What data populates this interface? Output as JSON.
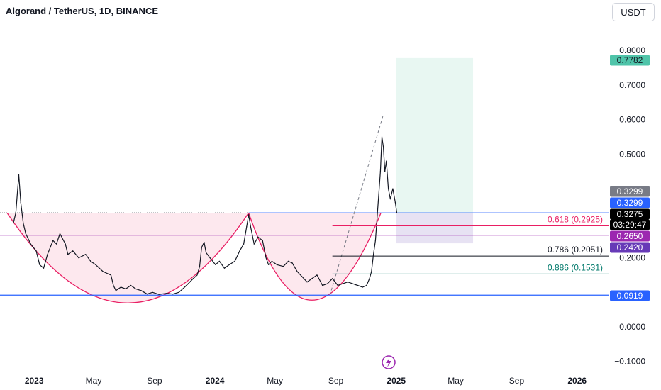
{
  "header": {
    "title": "Algorand / TetherUS, 1D, BINANCE",
    "currency_button": "USDT"
  },
  "colors": {
    "price_line": "#131722",
    "cup_fill": "#fde8ee",
    "cup_curve": "#e91e63",
    "support_line": "#2962ff",
    "resistance_line": "#2962ff",
    "dotted_line": "#131722",
    "fib_0618": "#e91e63",
    "fib_0786": "#131722",
    "fib_0886": "#00796b",
    "target_zone": "#e8f7f2",
    "stop_zone": "#e7e2f3",
    "projection_line": "#787b86",
    "purple_line": "#9c27b0",
    "badge_target": "#4fc4a9",
    "badge_gray": "#787b86",
    "badge_blue": "#2962ff",
    "badge_black": "#000000",
    "badge_pink": "#9c27b0",
    "badge_purple": "#673ab7",
    "axis_text": "#131722",
    "lightning": "#9c27b0"
  },
  "icons": {
    "events": "lightning-icon"
  },
  "chart_data": {
    "type": "line",
    "title": "Algorand / TetherUS, 1D, BINANCE",
    "xlabel": "",
    "ylabel": "",
    "ylim": [
      -0.1,
      0.8
    ],
    "y_ticks": [
      "0.8000",
      "0.7000",
      "0.6000",
      "0.5000",
      "0.2000",
      "0.0000",
      "−0.1000"
    ],
    "y_tick_values": [
      0.8,
      0.7,
      0.6,
      0.5,
      0.2,
      0.0,
      -0.1
    ],
    "x_ticks": [
      "2023",
      "May",
      "Sep",
      "2024",
      "May",
      "Sep",
      "2025",
      "May",
      "Sep",
      "2026"
    ],
    "x_tick_dates": [
      "2023-01-01",
      "2023-05-01",
      "2023-09-01",
      "2024-01-01",
      "2024-05-01",
      "2024-09-01",
      "2025-01-01",
      "2025-05-01",
      "2025-09-01",
      "2026-01-01"
    ],
    "bold_ticks": [
      "2023",
      "2024",
      "2025",
      "2026"
    ],
    "series": [
      {
        "values": [
          [
            "2022-11-20",
            0.3
          ],
          [
            "2022-11-25",
            0.33
          ],
          [
            "2022-12-01",
            0.44
          ],
          [
            "2022-12-05",
            0.36
          ],
          [
            "2022-12-10",
            0.3
          ],
          [
            "2022-12-15",
            0.27
          ],
          [
            "2022-12-25",
            0.24
          ],
          [
            "2023-01-05",
            0.22
          ],
          [
            "2023-01-12",
            0.18
          ],
          [
            "2023-01-20",
            0.17
          ],
          [
            "2023-01-28",
            0.21
          ],
          [
            "2023-02-08",
            0.25
          ],
          [
            "2023-02-15",
            0.24
          ],
          [
            "2023-02-22",
            0.27
          ],
          [
            "2023-03-05",
            0.24
          ],
          [
            "2023-03-10",
            0.21
          ],
          [
            "2023-03-20",
            0.22
          ],
          [
            "2023-04-01",
            0.2
          ],
          [
            "2023-04-15",
            0.21
          ],
          [
            "2023-04-25",
            0.19
          ],
          [
            "2023-05-05",
            0.18
          ],
          [
            "2023-05-20",
            0.16
          ],
          [
            "2023-06-05",
            0.15
          ],
          [
            "2023-06-10",
            0.12
          ],
          [
            "2023-06-15",
            0.105
          ],
          [
            "2023-06-25",
            0.115
          ],
          [
            "2023-07-05",
            0.11
          ],
          [
            "2023-07-15",
            0.12
          ],
          [
            "2023-07-25",
            0.11
          ],
          [
            "2023-08-05",
            0.105
          ],
          [
            "2023-08-17",
            0.095
          ],
          [
            "2023-08-28",
            0.1
          ],
          [
            "2023-09-10",
            0.094
          ],
          [
            "2023-09-25",
            0.097
          ],
          [
            "2023-10-08",
            0.095
          ],
          [
            "2023-10-20",
            0.1
          ],
          [
            "2023-10-28",
            0.11
          ],
          [
            "2023-11-08",
            0.125
          ],
          [
            "2023-11-18",
            0.14
          ],
          [
            "2023-11-26",
            0.15
          ],
          [
            "2023-12-01",
            0.175
          ],
          [
            "2023-12-05",
            0.23
          ],
          [
            "2023-12-10",
            0.245
          ],
          [
            "2023-12-14",
            0.215
          ],
          [
            "2023-12-22",
            0.2
          ],
          [
            "2024-01-02",
            0.18
          ],
          [
            "2024-01-10",
            0.19
          ],
          [
            "2024-01-20",
            0.17
          ],
          [
            "2024-01-30",
            0.18
          ],
          [
            "2024-02-10",
            0.19
          ],
          [
            "2024-02-20",
            0.22
          ],
          [
            "2024-02-28",
            0.24
          ],
          [
            "2024-03-05",
            0.29
          ],
          [
            "2024-03-09",
            0.325
          ],
          [
            "2024-03-13",
            0.29
          ],
          [
            "2024-03-20",
            0.24
          ],
          [
            "2024-03-28",
            0.26
          ],
          [
            "2024-04-06",
            0.25
          ],
          [
            "2024-04-13",
            0.2
          ],
          [
            "2024-04-18",
            0.18
          ],
          [
            "2024-04-25",
            0.19
          ],
          [
            "2024-05-05",
            0.18
          ],
          [
            "2024-05-18",
            0.175
          ],
          [
            "2024-05-28",
            0.19
          ],
          [
            "2024-06-05",
            0.185
          ],
          [
            "2024-06-15",
            0.16
          ],
          [
            "2024-06-25",
            0.145
          ],
          [
            "2024-07-05",
            0.13
          ],
          [
            "2024-07-15",
            0.14
          ],
          [
            "2024-07-25",
            0.15
          ],
          [
            "2024-08-05",
            0.12
          ],
          [
            "2024-08-15",
            0.125
          ],
          [
            "2024-08-25",
            0.14
          ],
          [
            "2024-09-05",
            0.12
          ],
          [
            "2024-09-15",
            0.125
          ],
          [
            "2024-09-25",
            0.13
          ],
          [
            "2024-10-05",
            0.125
          ],
          [
            "2024-10-15",
            0.12
          ],
          [
            "2024-10-25",
            0.115
          ],
          [
            "2024-11-02",
            0.12
          ],
          [
            "2024-11-08",
            0.14
          ],
          [
            "2024-11-12",
            0.16
          ],
          [
            "2024-11-16",
            0.21
          ],
          [
            "2024-11-20",
            0.25
          ],
          [
            "2024-11-25",
            0.35
          ],
          [
            "2024-11-30",
            0.45
          ],
          [
            "2024-12-03",
            0.55
          ],
          [
            "2024-12-06",
            0.52
          ],
          [
            "2024-12-09",
            0.45
          ],
          [
            "2024-12-12",
            0.48
          ],
          [
            "2024-12-16",
            0.4
          ],
          [
            "2024-12-20",
            0.37
          ],
          [
            "2024-12-25",
            0.4
          ],
          [
            "2024-12-30",
            0.36
          ],
          [
            "2025-01-02",
            0.33
          ]
        ]
      }
    ],
    "price_labels": [
      {
        "label": "0.7782",
        "value": 0.7782
      },
      {
        "label": "0.3299",
        "value": 0.3299
      },
      {
        "label": "0.3299",
        "value": 0.3299
      },
      {
        "label": "0.3275",
        "value": 0.3275
      },
      {
        "label": "03:29:47"
      },
      {
        "label": "0.2650",
        "value": 0.265
      },
      {
        "label": "0.2420",
        "value": 0.242
      },
      {
        "label": "0.0919",
        "value": 0.0919
      }
    ],
    "fib_levels": [
      {
        "label": "0.618 (0.2925)",
        "value": 0.2925
      },
      {
        "label": "0.786 (0.2051)",
        "value": 0.2051
      },
      {
        "label": "0.886 (0.1531)",
        "value": 0.1531
      }
    ],
    "levels": {
      "resistance": 0.3299,
      "support": 0.0919,
      "purple": 0.265
    },
    "target_zone": {
      "from_date": "2025-01-01",
      "to_date": "2025-06-05",
      "top": 0.7782,
      "bottom": 0.3299
    },
    "stop_zone": {
      "from_date": "2025-01-01",
      "to_date": "2025-06-05",
      "top": 0.3299,
      "bottom": 0.242
    },
    "projection": {
      "from_date": "2024-08-20",
      "from_value": 0.0919,
      "to_date": "2024-12-05",
      "to_value": 0.61
    }
  }
}
